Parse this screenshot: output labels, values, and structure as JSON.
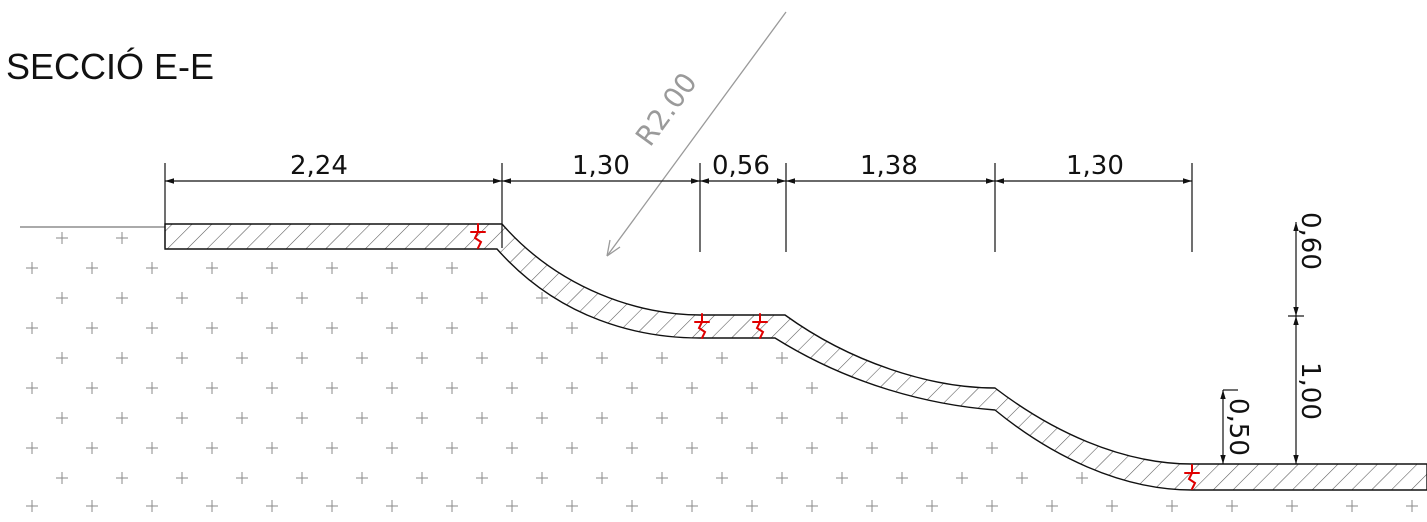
{
  "title": "SECCIÓ E-E",
  "radius_label": "R2.00",
  "horizontal_dims": [
    "2,24",
    "1,30",
    "0,56",
    "1,38",
    "1,30"
  ],
  "vertical_dims": [
    "0,60",
    "1,00",
    "0,50"
  ],
  "colors": {
    "line": "#111111",
    "hatch": "#555555",
    "ground_marks": "#8a8a8a",
    "leader": "#9a9a9a",
    "break_symbols": "#e00000"
  }
}
